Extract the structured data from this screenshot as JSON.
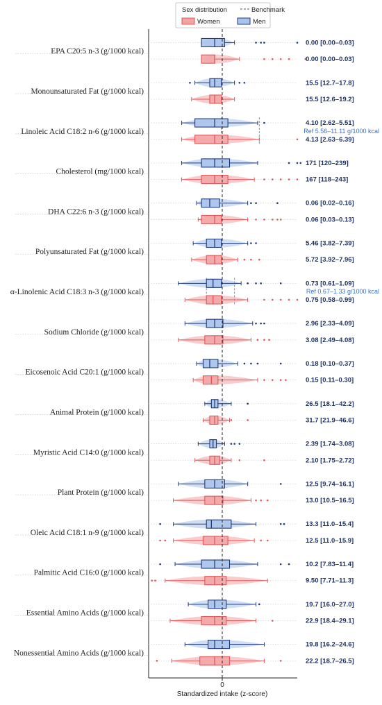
{
  "chart_data": {
    "type": "boxplot",
    "xlabel": "Standardized intake (z-score)",
    "x_ticks": [
      "0"
    ],
    "legend": {
      "title": "Sex distribution",
      "benchmark_label": "Benchmark",
      "entries": [
        {
          "name": "Women",
          "color": "#e0575a",
          "fill": "#f2a3a3"
        },
        {
          "name": "Men",
          "color": "#1f3a78",
          "fill": "#a9c3ea"
        }
      ]
    },
    "colors": {
      "women": "#e0575a",
      "men": "#1f3a78",
      "men_fill": "#a9c3ea",
      "women_fill": "#f2a3a3",
      "stats_text": "#1c2f5e",
      "ref_text": "#3a73c8"
    },
    "nutrients": [
      {
        "name": "EPA C20:5 n-3 (g/1000 kcal)",
        "men": {
          "stat": "0.00 [0.00–0.03]",
          "box": [
            -0.08,
            0.0,
            0.06
          ],
          "whisker": [
            -0.08,
            0.12
          ],
          "outliers": [
            0.25,
            0.28,
            0.3,
            0.5
          ]
        },
        "women": {
          "stat": "0.00 [0.00–0.03]",
          "box": [
            -0.08,
            0.0,
            0.0
          ],
          "whisker": [
            -0.08,
            0.15
          ],
          "outliers": [
            0.3,
            0.35,
            0.4,
            0.45,
            0.55
          ]
        }
      },
      {
        "name": "Monounsaturated Fat (g/1000 kcal)",
        "men": {
          "stat": "15.5 [12.7–17.8]",
          "box": [
            -0.03,
            0.0,
            0.04
          ],
          "whisker": [
            -0.12,
            0.12
          ],
          "outliers": [
            -0.15,
            0.15,
            0.18
          ]
        },
        "women": {
          "stat": "15.5 [12.6–19.2]",
          "box": [
            -0.03,
            0.0,
            0.04
          ],
          "whisker": [
            -0.14,
            0.12
          ]
        }
      },
      {
        "name": "Linoleic Acid C18:2 n-6 (g/1000 kcal)",
        "men": {
          "stat": "4.10 [2.62–5.51]",
          "box": [
            -0.12,
            0.0,
            0.08
          ],
          "whisker": [
            -0.2,
            0.26
          ],
          "outliers": [
            0.3
          ]
        },
        "women": {
          "stat": "4.13 [2.63–6.39]",
          "box": [
            -0.12,
            0.0,
            0.08
          ],
          "whisker": [
            -0.2,
            0.27
          ],
          "outliers": [
            0.5
          ]
        },
        "reference": {
          "text": "Ref 5.56–11.11 g/1000 kcal",
          "range": [
            0.04,
            0.27
          ]
        }
      },
      {
        "name": "Cholesterol (mg/1000 kcal)",
        "men": {
          "stat": "171 [120–239]",
          "box": [
            -0.08,
            0.0,
            0.09
          ],
          "whisker": [
            -0.2,
            0.26
          ],
          "outliers": [
            0.45,
            0.5,
            0.52
          ]
        },
        "women": {
          "stat": "167 [118–243]",
          "box": [
            -0.08,
            0.0,
            0.08
          ],
          "whisker": [
            -0.2,
            0.24
          ],
          "outliers": [
            0.3,
            0.35,
            0.4,
            0.45,
            0.5
          ]
        }
      },
      {
        "name": "DHA C22:6 n-3 (g/1000 kcal)",
        "men": {
          "stat": "0.06 [0.02–0.16]",
          "box": [
            -0.08,
            -0.03,
            0.03
          ],
          "whisker": [
            -0.11,
            0.2
          ],
          "outliers": [
            0.22,
            0.25,
            0.38
          ]
        },
        "women": {
          "stat": "0.06 [0.03–0.13]",
          "box": [
            -0.08,
            0.0,
            0.04
          ],
          "whisker": [
            -0.1,
            0.2
          ],
          "outliers": [
            0.25,
            0.3,
            0.35,
            0.38,
            0.4
          ]
        }
      },
      {
        "name": "Polyunsaturated Fat (g/1000 kcal)",
        "men": {
          "stat": "5.46 [3.82–7.39]",
          "box": [
            -0.05,
            0.0,
            0.04
          ],
          "whisker": [
            -0.13,
            0.2
          ],
          "outliers": [
            0.22,
            0.25
          ]
        },
        "women": {
          "stat": "5.72 [3.92–7.96]",
          "box": [
            -0.05,
            0.0,
            0.04
          ],
          "whisker": [
            -0.14,
            0.14
          ],
          "outliers": [
            0.18,
            0.22,
            0.27
          ]
        }
      },
      {
        "name": "α-Linolenic Acid C18:3 n-3 (g/1000 kcal)",
        "men": {
          "stat": "0.73 [0.61–1.09]",
          "box": [
            -0.05,
            -0.01,
            0.04
          ],
          "whisker": [
            -0.22,
            0.16
          ],
          "outliers": [
            0.2,
            0.25,
            0.28,
            0.4
          ]
        },
        "women": {
          "stat": "0.75 [0.58–0.99]",
          "box": [
            -0.05,
            -0.01,
            0.04
          ],
          "whisker": [
            -0.18,
            0.2
          ],
          "outliers": [
            0.3,
            0.35,
            0.4,
            0.45,
            0.5
          ]
        },
        "reference": {
          "text": "Ref 0.67–1.33 g/1000 kcal",
          "range": [
            -0.05,
            0.12
          ]
        }
      },
      {
        "name": "Sodium Chloride (g/1000 kcal)",
        "men": {
          "stat": "2.96 [2.33–4.09]",
          "box": [
            -0.05,
            0.0,
            0.05
          ],
          "whisker": [
            -0.18,
            0.23
          ],
          "outliers": [
            0.25,
            0.28,
            0.3
          ]
        },
        "women": {
          "stat": "3.08 [2.49–4.08]",
          "box": [
            -0.06,
            0.0,
            0.05
          ],
          "whisker": [
            -0.22,
            0.22
          ],
          "outliers": [
            0.26,
            0.3,
            0.33
          ]
        }
      },
      {
        "name": "Eicosenoic Acid C20:1 (g/1000 kcal)",
        "men": {
          "stat": "0.18 [0.10–0.37]",
          "box": [
            -0.07,
            -0.03,
            0.02
          ],
          "whisker": [
            -0.11,
            0.14
          ],
          "outliers": [
            0.18,
            0.22,
            0.26,
            0.4
          ]
        },
        "women": {
          "stat": "0.15 [0.11–0.30]",
          "box": [
            -0.07,
            -0.02,
            0.02
          ],
          "whisker": [
            -0.13,
            0.26
          ],
          "outliers": [
            0.3,
            0.35,
            0.4,
            0.43
          ]
        }
      },
      {
        "name": "Animal Protein (g/1000 kcal)",
        "men": {
          "stat": "26.5 [18.1–42.2]",
          "box": [
            -0.02,
            0.0,
            0.02
          ],
          "whisker": [
            -0.06,
            0.1
          ],
          "outliers": [
            0.2
          ]
        },
        "women": {
          "stat": "31.7 [21.9–46.6]",
          "box": [
            -0.03,
            0.0,
            0.02
          ],
          "whisker": [
            -0.07,
            0.09
          ],
          "outliers": [
            0.1,
            0.2
          ]
        }
      },
      {
        "name": "Myristic Acid C14:0 (g/1000 kcal)",
        "men": {
          "stat": "2.39 [1.74–3.08]",
          "box": [
            -0.03,
            -0.01,
            0.01
          ],
          "whisker": [
            -0.1,
            0.06
          ],
          "outliers": [
            0.1,
            0.12,
            0.15
          ]
        },
        "women": {
          "stat": "2.10 [1.75–2.72]",
          "box": [
            -0.03,
            0.0,
            0.03
          ],
          "whisker": [
            -0.12,
            0.1
          ],
          "outliers": [
            0.15,
            0.3
          ]
        }
      },
      {
        "name": "Plant Protein (g/1000 kcal)",
        "men": {
          "stat": "12.5 [9.74–16.1]",
          "box": [
            -0.06,
            0.0,
            0.06
          ],
          "whisker": [
            -0.22,
            0.2
          ],
          "outliers": [
            0.4
          ]
        },
        "women": {
          "stat": "13.0 [10.5–16.5]",
          "box": [
            -0.06,
            0.0,
            0.05
          ],
          "whisker": [
            -0.25,
            0.22
          ],
          "outliers": [
            0.25,
            0.28,
            0.32
          ]
        }
      },
      {
        "name": "Oleic Acid C18:1 n-9 (g/1000 kcal)",
        "men": {
          "stat": "13.3 [11.0–15.4]",
          "box": [
            -0.05,
            -0.02,
            0.1
          ],
          "whisker": [
            -0.25,
            0.25
          ],
          "outliers": [
            -0.33,
            0.4,
            0.42
          ]
        },
        "women": {
          "stat": "12.5 [11.0–15.9]",
          "box": [
            -0.07,
            0.0,
            0.08
          ],
          "whisker": [
            -0.25,
            0.24
          ],
          "outliers": [
            -0.33,
            -0.3,
            0.28,
            0.32
          ]
        }
      },
      {
        "name": "Palmitic Acid C16:0 (g/1000 kcal)",
        "men": {
          "stat": "10.2 [7.83–11.4]",
          "box": [
            -0.08,
            0.0,
            0.09
          ],
          "whisker": [
            -0.24,
            0.26
          ],
          "outliers": [
            -0.33,
            0.4,
            0.45
          ]
        },
        "women": {
          "stat": "9.50 [7.71–11.3]",
          "box": [
            -0.06,
            0.0,
            0.07
          ],
          "whisker": [
            -0.3,
            0.32
          ],
          "outliers": [
            -0.38,
            -0.36
          ]
        }
      },
      {
        "name": "Essential Amino Acids (g/1000 kcal)",
        "men": {
          "stat": "19.7 [16.0–27.0]",
          "box": [
            -0.04,
            0.0,
            0.07
          ],
          "whisker": [
            -0.16,
            0.25
          ],
          "outliers": [
            0.27
          ]
        },
        "women": {
          "stat": "22.9 [18.4–29.1]",
          "box": [
            -0.08,
            0.0,
            0.07
          ],
          "whisker": [
            -0.27,
            0.25
          ],
          "outliers": [
            0.35
          ]
        }
      },
      {
        "name": "Nonessential Amino Acids (g/1000 kcal)",
        "men": {
          "stat": "19.8 [16.2–24.6]",
          "box": [
            -0.04,
            0.0,
            0.09
          ],
          "whisker": [
            -0.18,
            0.3
          ]
        },
        "women": {
          "stat": "22.2 [18.7–26.5]",
          "box": [
            -0.09,
            0.0,
            0.09
          ],
          "whisker": [
            -0.26,
            0.3
          ],
          "outliers": [
            -0.35,
            0.4
          ]
        }
      }
    ]
  }
}
